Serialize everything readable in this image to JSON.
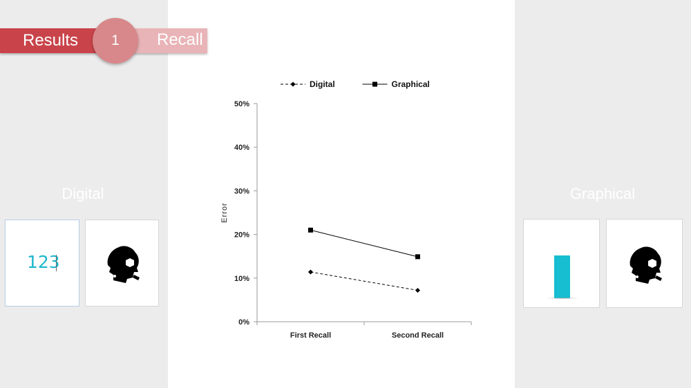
{
  "header": {
    "section_label": "Results",
    "step_number": "1",
    "step_label": "Recall"
  },
  "left_panel": {
    "title": "Digital",
    "card_number_text": "123"
  },
  "right_panel": {
    "title": "Graphical",
    "bar_level": 1.0
  },
  "colors": {
    "ribbon_dark": "#c9444a",
    "ribbon_light": "#e9b4b7",
    "circle": "#d8878a",
    "accent_cyan": "#17bdd0"
  },
  "icons": {
    "brain_left": "brain-head-icon",
    "brain_right": "brain-head-icon"
  },
  "chart_data": {
    "type": "line",
    "title": "",
    "xlabel": "",
    "ylabel": "Error",
    "categories": [
      "First Recall",
      "Second Recall"
    ],
    "ylim": [
      0,
      50
    ],
    "yticks": [
      "0%",
      "10%",
      "20%",
      "30%",
      "40%",
      "50%"
    ],
    "legend_position": "top",
    "series": [
      {
        "name": "Digital",
        "values": [
          11.4,
          7.2
        ],
        "style": "dashed",
        "marker": "diamond"
      },
      {
        "name": "Graphical",
        "values": [
          21.0,
          14.9
        ],
        "style": "solid",
        "marker": "square"
      }
    ]
  }
}
